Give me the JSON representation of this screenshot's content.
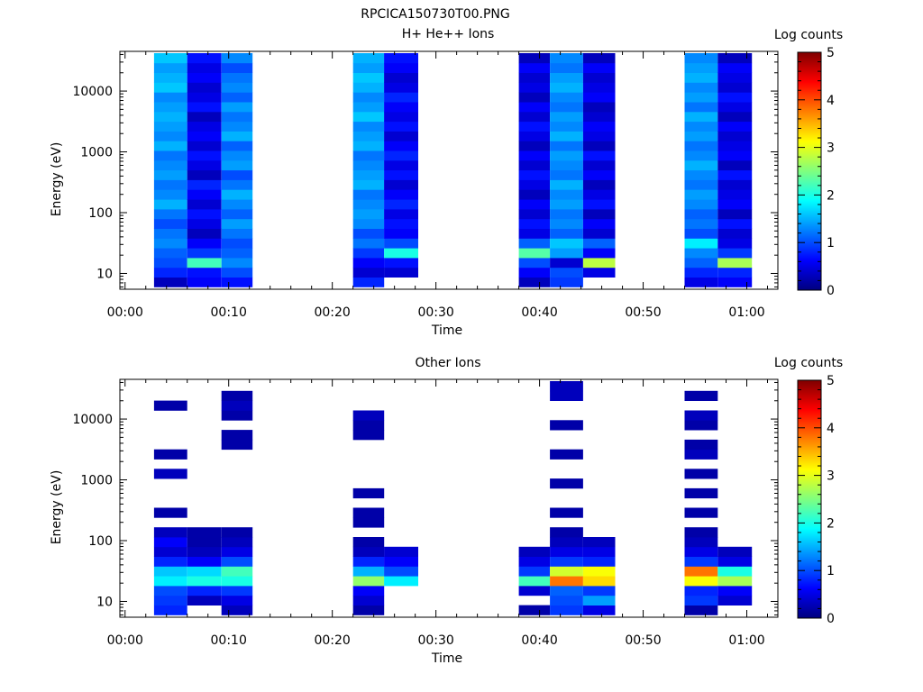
{
  "figure": {
    "title": "RPCICA150730T00.PNG"
  },
  "colormap": [
    "#00007f",
    "#0000ff",
    "#007fff",
    "#00ffff",
    "#7fff7f",
    "#ffff00",
    "#ff7f00",
    "#ff0000",
    "#7f0000"
  ],
  "chart_data": [
    {
      "type": "heatmap",
      "title": "H+ He++ Ions",
      "xlabel": "Time",
      "ylabel": "Energy (eV)",
      "x_ticks": [
        "00:00",
        "00:10",
        "00:20",
        "00:30",
        "00:40",
        "00:50",
        "01:00"
      ],
      "x_range_min": [
        -0.5,
        63
      ],
      "y_scale": "log",
      "y_range": [
        5.5,
        45000
      ],
      "y_ticks": [
        "10",
        "100",
        "1000",
        "10000"
      ],
      "colorbar": {
        "label": "Log counts",
        "range": [
          0,
          5
        ],
        "ticks": [
          "0",
          "1",
          "2",
          "3",
          "4",
          "5"
        ]
      },
      "grid": false,
      "columns": [
        {
          "t_min": [
            2.8,
            6.0
          ],
          "levels": [
            0.3,
            0.8,
            1.0,
            1.1,
            1.3,
            1.2,
            1.0,
            1.2,
            1.5,
            1.3,
            1.2,
            1.4,
            1.3,
            1.2,
            1.5,
            1.3,
            1.4,
            1.5,
            1.4,
            1.3,
            1.6,
            1.5,
            1.4,
            1.6
          ]
        },
        {
          "t_min": [
            6.0,
            9.3
          ],
          "levels": [
            0.6,
            0.7,
            2.2,
            0.9,
            0.6,
            0.3,
            0.5,
            0.7,
            0.4,
            0.6,
            0.8,
            0.3,
            0.5,
            0.7,
            0.4,
            0.6,
            0.5,
            0.3,
            0.7,
            0.5,
            0.4,
            0.6,
            0.5,
            0.7
          ]
        },
        {
          "t_min": [
            9.3,
            12.3
          ],
          "levels": [
            0.7,
            1.0,
            1.3,
            1.1,
            1.0,
            1.2,
            1.4,
            1.1,
            1.3,
            1.5,
            1.2,
            1.0,
            1.4,
            1.3,
            1.1,
            1.5,
            1.3,
            1.2,
            1.4,
            1.1,
            1.3,
            1.2,
            1.0,
            1.3
          ]
        },
        {
          "t_min": [
            22.0,
            25.0
          ],
          "levels": [
            0.8,
            0.4,
            0.6,
            0.9,
            1.2,
            1.0,
            1.3,
            1.4,
            1.3,
            1.2,
            1.5,
            1.4,
            1.3,
            1.2,
            1.5,
            1.4,
            1.3,
            1.6,
            1.4,
            1.3,
            1.5,
            1.6,
            1.4,
            1.5
          ]
        },
        {
          "t_min": [
            25.0,
            28.3
          ],
          "levels": [
            null,
            0.4,
            0.7,
            2.0,
            1.0,
            0.6,
            0.7,
            0.5,
            0.8,
            0.6,
            0.4,
            0.7,
            0.5,
            0.8,
            0.6,
            0.4,
            0.7,
            0.5,
            0.6,
            0.8,
            0.5,
            0.4,
            0.6,
            0.7
          ]
        },
        {
          "t_min": [
            38.0,
            41.0
          ],
          "levels": [
            0.3,
            0.6,
            1.0,
            2.3,
            1.1,
            0.5,
            0.7,
            0.4,
            0.6,
            0.3,
            0.5,
            0.7,
            0.4,
            0.6,
            0.3,
            0.5,
            0.7,
            0.4,
            0.6,
            0.3,
            0.5,
            0.4,
            0.6,
            0.3
          ]
        },
        {
          "t_min": [
            41.0,
            44.2
          ],
          "levels": [
            0.9,
            1.0,
            0.4,
            1.4,
            1.6,
            1.1,
            1.3,
            1.2,
            1.4,
            1.3,
            1.5,
            1.2,
            1.3,
            1.4,
            1.2,
            1.5,
            1.3,
            1.4,
            1.2,
            1.3,
            1.5,
            1.4,
            1.2,
            1.3
          ]
        },
        {
          "t_min": [
            44.2,
            47.3
          ],
          "levels": [
            null,
            0.5,
            2.8,
            0.6,
            1.1,
            0.4,
            0.6,
            0.3,
            0.7,
            0.5,
            0.3,
            0.6,
            0.4,
            0.7,
            0.3,
            0.5,
            0.6,
            0.4,
            0.3,
            0.6,
            0.5,
            0.4,
            0.6,
            0.3
          ]
        },
        {
          "t_min": [
            54.0,
            57.2
          ],
          "levels": [
            0.5,
            0.8,
            1.1,
            1.3,
            1.8,
            1.0,
            1.2,
            1.1,
            1.3,
            1.4,
            1.2,
            1.3,
            1.5,
            1.3,
            1.2,
            1.4,
            1.3,
            1.5,
            1.2,
            1.4,
            1.3,
            1.5,
            1.4,
            1.3
          ]
        },
        {
          "t_min": [
            57.2,
            60.5
          ],
          "levels": [
            0.6,
            0.8,
            2.7,
            0.9,
            0.5,
            0.4,
            0.7,
            0.3,
            0.6,
            0.5,
            0.4,
            0.7,
            0.3,
            0.6,
            0.5,
            0.4,
            0.6,
            0.3,
            0.5,
            0.7,
            0.4,
            0.5,
            0.6,
            0.3
          ]
        }
      ]
    },
    {
      "type": "heatmap",
      "title": "Other Ions",
      "xlabel": "Time",
      "ylabel": "Energy (eV)",
      "x_ticks": [
        "00:00",
        "00:10",
        "00:20",
        "00:30",
        "00:40",
        "00:50",
        "01:00"
      ],
      "x_range_min": [
        -0.5,
        63
      ],
      "y_scale": "log",
      "y_range": [
        5.5,
        45000
      ],
      "y_ticks": [
        "10",
        "100",
        "1000",
        "10000"
      ],
      "colorbar": {
        "label": "Log counts",
        "range": [
          0,
          5
        ],
        "ticks": [
          "0",
          "1",
          "2",
          "3",
          "4",
          "5"
        ]
      },
      "grid": false,
      "columns": [
        {
          "t_min": [
            2.8,
            6.0
          ],
          "levels": [
            0.8,
            0.9,
            1.0,
            1.8,
            1.6,
            0.8,
            0.4,
            0.6,
            0.3,
            null,
            0.2,
            null,
            null,
            null,
            0.3,
            null,
            0.2,
            null,
            null,
            null,
            null,
            0.2,
            null,
            null
          ]
        },
        {
          "t_min": [
            6.0,
            9.3
          ],
          "levels": [
            null,
            0.3,
            0.8,
            2.0,
            1.7,
            0.6,
            0.3,
            0.2,
            0.2,
            null,
            null,
            null,
            null,
            null,
            null,
            null,
            null,
            null,
            null,
            null,
            null,
            null,
            null,
            null
          ]
        },
        {
          "t_min": [
            9.3,
            12.3
          ],
          "levels": [
            0.3,
            0.5,
            0.9,
            2.0,
            2.2,
            1.0,
            0.5,
            0.3,
            0.2,
            null,
            null,
            null,
            null,
            null,
            null,
            null,
            null,
            0.2,
            0.2,
            null,
            0.2,
            0.3,
            0.2,
            null
          ]
        },
        {
          "t_min": [
            22.0,
            25.0
          ],
          "levels": [
            0.2,
            0.4,
            0.6,
            2.6,
            1.5,
            0.8,
            0.3,
            0.2,
            null,
            0.2,
            0.2,
            null,
            0.2,
            null,
            null,
            null,
            null,
            null,
            0.2,
            0.2,
            0.3,
            null,
            null,
            null
          ]
        },
        {
          "t_min": [
            25.0,
            28.3
          ],
          "levels": [
            null,
            null,
            null,
            1.8,
            1.0,
            0.6,
            0.4,
            null,
            null,
            null,
            null,
            null,
            null,
            null,
            null,
            null,
            null,
            null,
            null,
            null,
            null,
            null,
            null,
            null
          ]
        },
        {
          "t_min": [
            38.0,
            41.0
          ],
          "levels": [
            0.2,
            null,
            0.4,
            2.2,
            0.9,
            0.5,
            0.3,
            null,
            null,
            null,
            null,
            null,
            null,
            null,
            null,
            null,
            null,
            null,
            null,
            null,
            null,
            null,
            null,
            null
          ]
        },
        {
          "t_min": [
            41.0,
            44.2
          ],
          "levels": [
            0.9,
            1.0,
            1.1,
            3.8,
            2.9,
            0.9,
            0.5,
            0.3,
            0.2,
            null,
            0.2,
            null,
            null,
            0.2,
            null,
            null,
            0.2,
            null,
            null,
            0.2,
            null,
            null,
            0.3,
            0.3
          ]
        },
        {
          "t_min": [
            44.2,
            47.3
          ],
          "levels": [
            0.5,
            1.4,
            0.9,
            3.3,
            3.1,
            0.8,
            0.5,
            0.3,
            null,
            null,
            null,
            null,
            null,
            null,
            null,
            null,
            null,
            null,
            null,
            null,
            null,
            null,
            null,
            null
          ]
        },
        {
          "t_min": [
            54.0,
            57.2
          ],
          "levels": [
            0.2,
            0.9,
            0.8,
            3.1,
            3.8,
            0.9,
            0.5,
            0.3,
            0.2,
            null,
            0.2,
            null,
            0.2,
            null,
            0.2,
            null,
            0.3,
            0.2,
            null,
            0.2,
            0.3,
            null,
            0.2,
            null
          ]
        },
        {
          "t_min": [
            57.2,
            60.5
          ],
          "levels": [
            null,
            0.4,
            0.6,
            2.7,
            2.0,
            0.5,
            0.3,
            null,
            null,
            null,
            null,
            null,
            null,
            null,
            null,
            null,
            null,
            null,
            null,
            null,
            null,
            null,
            null,
            null
          ]
        }
      ]
    }
  ]
}
